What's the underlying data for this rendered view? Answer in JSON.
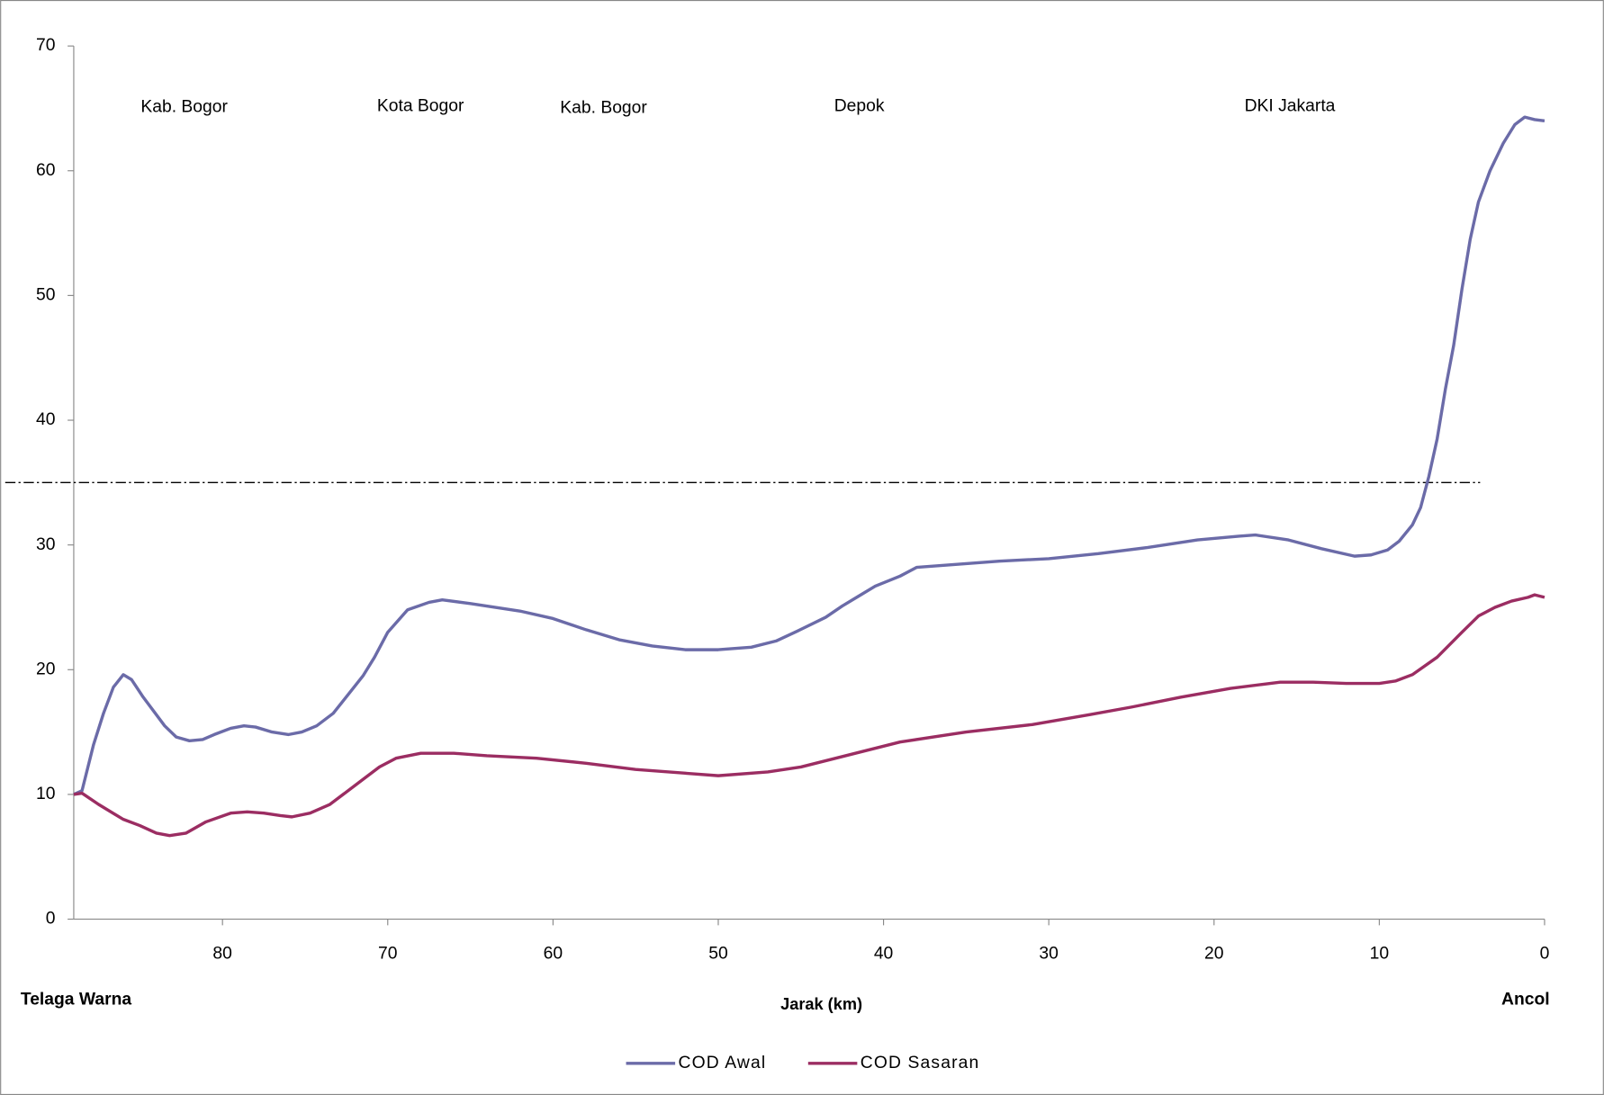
{
  "chart_data": {
    "type": "line",
    "xlabel": "Jarak (km)",
    "xlim": [
      89,
      0
    ],
    "ylim": [
      0,
      70
    ],
    "xticks": [
      80,
      70,
      60,
      50,
      40,
      30,
      20,
      10,
      0
    ],
    "yticks": [
      0,
      10,
      20,
      30,
      40,
      50,
      60,
      70
    ],
    "threshold": 35,
    "start_label": "Telaga Warna",
    "end_label": "Ancol",
    "regions": [
      "Kab. Bogor",
      "Kota Bogor",
      "Kab. Bogor",
      "Depok",
      "DKI Jakarta"
    ],
    "legend": "bottom",
    "series": [
      {
        "name": "COD Awal",
        "color": "#6b6ba8",
        "x": [
          89,
          88.5,
          87.8,
          87.2,
          86.6,
          86,
          85.5,
          84.8,
          83.5,
          82.8,
          82,
          81.2,
          80.5,
          79.5,
          78.7,
          78,
          77,
          76,
          75.2,
          74.3,
          73.3,
          71.5,
          70.8,
          70,
          68.8,
          67.5,
          66.7,
          65,
          62,
          60,
          58,
          56,
          54,
          52,
          50,
          48,
          46.5,
          45.2,
          43.5,
          42.5,
          41.5,
          40.5,
          39,
          38,
          35,
          33,
          30,
          27,
          24,
          21,
          18.5,
          17.5,
          15.5,
          13.5,
          11.5,
          10.5,
          9.5,
          8.8,
          8,
          7.5,
          7,
          6.5,
          6,
          5.5,
          5,
          4.5,
          4,
          3.3,
          2.5,
          1.8,
          1.2,
          0.6,
          0
        ],
        "values": [
          10,
          10.3,
          14,
          16.5,
          18.6,
          19.6,
          19.2,
          17.8,
          15.5,
          14.6,
          14.3,
          14.4,
          14.8,
          15.3,
          15.5,
          15.4,
          15,
          14.8,
          15,
          15.5,
          16.5,
          19.5,
          21,
          23,
          24.8,
          25.4,
          25.6,
          25.3,
          24.7,
          24.1,
          23.2,
          22.4,
          21.9,
          21.6,
          21.6,
          21.8,
          22.3,
          23.1,
          24.2,
          25.1,
          25.9,
          26.7,
          27.5,
          28.2,
          28.5,
          28.7,
          28.9,
          29.3,
          29.8,
          30.4,
          30.7,
          30.8,
          30.4,
          29.7,
          29.1,
          29.2,
          29.6,
          30.3,
          31.6,
          33,
          35.5,
          38.5,
          42.5,
          46,
          50.5,
          54.5,
          57.5,
          60,
          62.2,
          63.7,
          64.3,
          64.1,
          64
        ]
      },
      {
        "name": "COD Sasaran",
        "color": "#9b2d62",
        "x": [
          89,
          88.5,
          87.5,
          86,
          85,
          84,
          83.2,
          82.2,
          81,
          79.5,
          78.5,
          77.5,
          76.5,
          75.8,
          74.7,
          73.5,
          71.5,
          70.5,
          69.5,
          68,
          66,
          64,
          61,
          58,
          55,
          52,
          50,
          47,
          45,
          42,
          39,
          35,
          31,
          27.5,
          25,
          22,
          19,
          16,
          14,
          12,
          10,
          9,
          8,
          6.5,
          5,
          4,
          3,
          2,
          1,
          0.6,
          0
        ],
        "values": [
          10,
          10.1,
          9.2,
          8,
          7.5,
          6.9,
          6.7,
          6.9,
          7.8,
          8.5,
          8.6,
          8.5,
          8.3,
          8.2,
          8.5,
          9.2,
          11.2,
          12.2,
          12.9,
          13.3,
          13.3,
          13.1,
          12.9,
          12.5,
          12,
          11.7,
          11.5,
          11.8,
          12.2,
          13.2,
          14.2,
          15,
          15.6,
          16.4,
          17,
          17.8,
          18.5,
          19,
          19,
          18.9,
          18.9,
          19.1,
          19.6,
          21,
          23,
          24.3,
          25,
          25.5,
          25.8,
          26,
          25.8
        ]
      }
    ]
  }
}
